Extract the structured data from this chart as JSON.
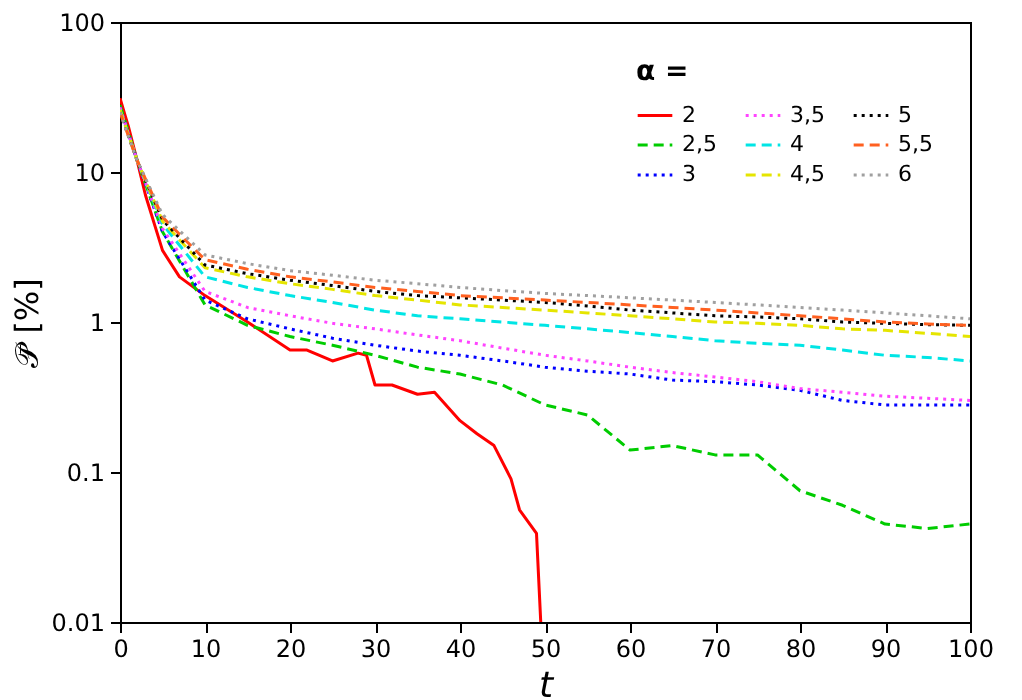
{
  "chart_data": {
    "type": "line",
    "xlabel": "t",
    "ylabel": "𝒫̄ [%]",
    "legend_title": "α =",
    "legend": "top right",
    "grid": false,
    "log": "y",
    "xlim": [
      0,
      100
    ],
    "xticks": [
      0,
      10,
      20,
      30,
      40,
      50,
      60,
      70,
      80,
      90,
      100
    ],
    "ylim": [
      0.01,
      100
    ],
    "yticks": [
      0.01,
      0.1,
      1,
      10,
      100
    ],
    "x": [
      0,
      2,
      5,
      10,
      15,
      20,
      25,
      30,
      35,
      40,
      45,
      50,
      55,
      60,
      65,
      70,
      75,
      80,
      85,
      90,
      95,
      100
    ],
    "series": [
      {
        "name": "2",
        "color": "#ff0000",
        "line_style": "solid",
        "x": [
          0,
          1,
          2,
          3,
          5,
          7,
          10,
          15,
          20,
          22,
          25,
          28,
          29,
          30,
          32,
          35,
          37,
          40,
          42,
          44,
          46,
          47,
          49,
          49.5
        ],
        "values": [
          31,
          20,
          12,
          7,
          3,
          2,
          1.5,
          1.0,
          0.65,
          0.65,
          0.55,
          0.62,
          0.6,
          0.38,
          0.38,
          0.33,
          0.34,
          0.22,
          0.18,
          0.15,
          0.09,
          0.056,
          0.039,
          0.01
        ]
      },
      {
        "name": "2,5",
        "color": "#00cc00",
        "line_style": "dashed",
        "values": [
          28,
          12,
          4,
          1.3,
          0.95,
          0.8,
          0.7,
          0.6,
          0.5,
          0.45,
          0.38,
          0.28,
          0.24,
          0.14,
          0.15,
          0.13,
          0.13,
          0.075,
          0.06,
          0.045,
          0.042,
          0.045
        ]
      },
      {
        "name": "3",
        "color": "#0000ff",
        "line_style": "dotted",
        "values": [
          27,
          12,
          4,
          1.4,
          1.05,
          0.9,
          0.78,
          0.7,
          0.64,
          0.6,
          0.55,
          0.5,
          0.47,
          0.45,
          0.41,
          0.4,
          0.38,
          0.35,
          0.3,
          0.28,
          0.28,
          0.28
        ]
      },
      {
        "name": "3,5",
        "color": "#ff44ff",
        "line_style": "dotted",
        "values": [
          27,
          12,
          4.2,
          1.6,
          1.25,
          1.1,
          0.98,
          0.9,
          0.82,
          0.75,
          0.67,
          0.6,
          0.55,
          0.5,
          0.46,
          0.43,
          0.4,
          0.36,
          0.34,
          0.32,
          0.31,
          0.3
        ]
      },
      {
        "name": "4",
        "color": "#00e5e5",
        "line_style": "dashed",
        "values": [
          26,
          12,
          4.5,
          2.0,
          1.7,
          1.5,
          1.35,
          1.2,
          1.1,
          1.05,
          1.0,
          0.95,
          0.9,
          0.85,
          0.8,
          0.75,
          0.72,
          0.7,
          0.65,
          0.6,
          0.58,
          0.55
        ]
      },
      {
        "name": "4,5",
        "color": "#e5e500",
        "line_style": "dashed",
        "values": [
          26,
          12,
          4.7,
          2.3,
          2.0,
          1.8,
          1.65,
          1.5,
          1.4,
          1.3,
          1.25,
          1.2,
          1.15,
          1.1,
          1.05,
          1.0,
          0.98,
          0.95,
          0.9,
          0.88,
          0.84,
          0.8
        ]
      },
      {
        "name": "5",
        "color": "#000000",
        "line_style": "dotted",
        "values": [
          25,
          12,
          4.8,
          2.4,
          2.1,
          1.9,
          1.75,
          1.6,
          1.5,
          1.45,
          1.4,
          1.35,
          1.28,
          1.2,
          1.15,
          1.1,
          1.08,
          1.05,
          1.0,
          0.98,
          0.96,
          0.95
        ]
      },
      {
        "name": "5,5",
        "color": "#ff6020",
        "line_style": "dashed",
        "values": [
          25,
          12,
          5,
          2.6,
          2.25,
          2.0,
          1.85,
          1.7,
          1.6,
          1.5,
          1.45,
          1.4,
          1.35,
          1.3,
          1.25,
          1.2,
          1.15,
          1.1,
          1.05,
          1.0,
          0.97,
          0.95
        ]
      },
      {
        "name": "6",
        "color": "#a0a0a0",
        "line_style": "dotted",
        "values": [
          25,
          12,
          5.2,
          2.8,
          2.45,
          2.2,
          2.05,
          1.9,
          1.8,
          1.7,
          1.62,
          1.55,
          1.5,
          1.45,
          1.4,
          1.35,
          1.3,
          1.25,
          1.2,
          1.15,
          1.1,
          1.05
        ]
      }
    ]
  }
}
